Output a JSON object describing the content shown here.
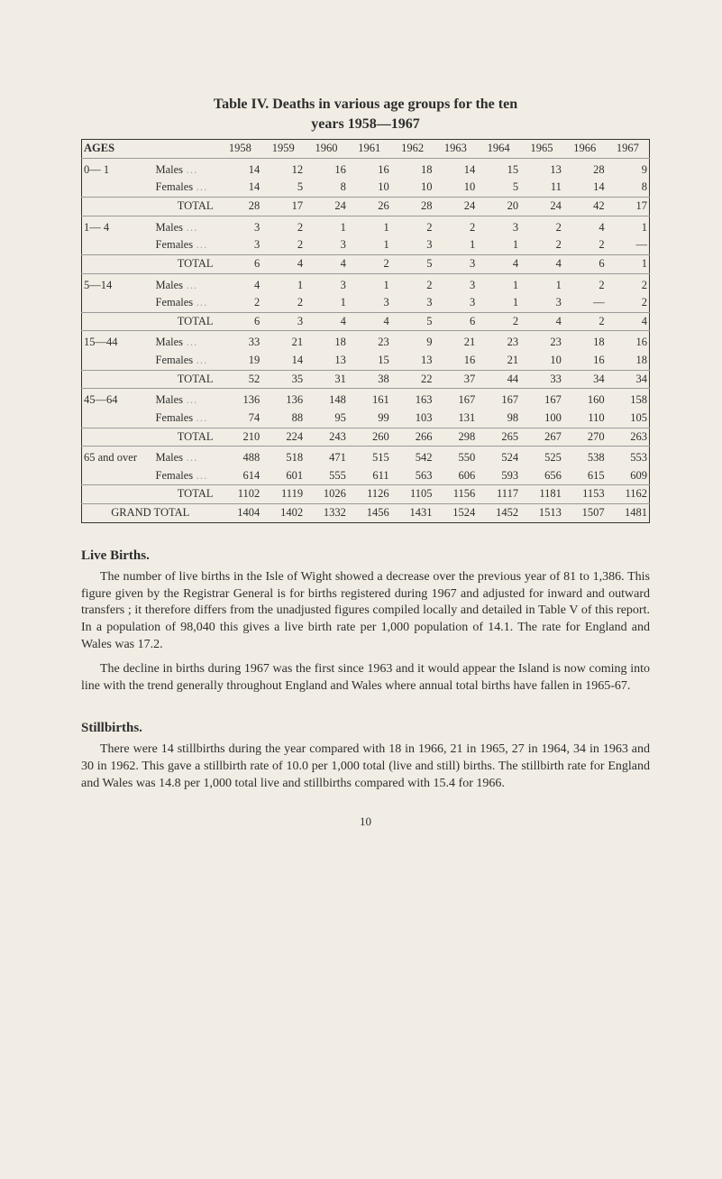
{
  "caption": {
    "prefix": "Table IV.",
    "title": "Deaths in various age groups for the ten",
    "subtitle": "years 1958—1967"
  },
  "years": [
    "1958",
    "1959",
    "1960",
    "1961",
    "1962",
    "1963",
    "1964",
    "1965",
    "1966",
    "1967"
  ],
  "header_label": "AGES",
  "labels": {
    "males": "Males",
    "females": "Females",
    "total": "TOTAL",
    "grand": "GRAND TOTAL"
  },
  "groups": [
    {
      "age": "0— 1",
      "males": [
        "14",
        "12",
        "16",
        "16",
        "18",
        "14",
        "15",
        "13",
        "28",
        "9"
      ],
      "females": [
        "14",
        "5",
        "8",
        "10",
        "10",
        "10",
        "5",
        "11",
        "14",
        "8"
      ],
      "total": [
        "28",
        "17",
        "24",
        "26",
        "28",
        "24",
        "20",
        "24",
        "42",
        "17"
      ]
    },
    {
      "age": "1— 4",
      "males": [
        "3",
        "2",
        "1",
        "1",
        "2",
        "2",
        "3",
        "2",
        "4",
        "1"
      ],
      "females": [
        "3",
        "2",
        "3",
        "1",
        "3",
        "1",
        "1",
        "2",
        "2",
        "—"
      ],
      "total": [
        "6",
        "4",
        "4",
        "2",
        "5",
        "3",
        "4",
        "4",
        "6",
        "1"
      ]
    },
    {
      "age": "5—14",
      "males": [
        "4",
        "1",
        "3",
        "1",
        "2",
        "3",
        "1",
        "1",
        "2",
        "2"
      ],
      "females": [
        "2",
        "2",
        "1",
        "3",
        "3",
        "3",
        "1",
        "3",
        "—",
        "2"
      ],
      "total": [
        "6",
        "3",
        "4",
        "4",
        "5",
        "6",
        "2",
        "4",
        "2",
        "4"
      ]
    },
    {
      "age": "15—44",
      "males": [
        "33",
        "21",
        "18",
        "23",
        "9",
        "21",
        "23",
        "23",
        "18",
        "16"
      ],
      "females": [
        "19",
        "14",
        "13",
        "15",
        "13",
        "16",
        "21",
        "10",
        "16",
        "18"
      ],
      "total": [
        "52",
        "35",
        "31",
        "38",
        "22",
        "37",
        "44",
        "33",
        "34",
        "34"
      ]
    },
    {
      "age": "45—64",
      "males": [
        "136",
        "136",
        "148",
        "161",
        "163",
        "167",
        "167",
        "167",
        "160",
        "158"
      ],
      "females": [
        "74",
        "88",
        "95",
        "99",
        "103",
        "131",
        "98",
        "100",
        "110",
        "105"
      ],
      "total": [
        "210",
        "224",
        "243",
        "260",
        "266",
        "298",
        "265",
        "267",
        "270",
        "263"
      ]
    },
    {
      "age": "65 and over",
      "males": [
        "488",
        "518",
        "471",
        "515",
        "542",
        "550",
        "524",
        "525",
        "538",
        "553"
      ],
      "females": [
        "614",
        "601",
        "555",
        "611",
        "563",
        "606",
        "593",
        "656",
        "615",
        "609"
      ],
      "total": [
        "1102",
        "1119",
        "1026",
        "1126",
        "1105",
        "1156",
        "1117",
        "1181",
        "1153",
        "1162"
      ]
    }
  ],
  "grand_total": [
    "1404",
    "1402",
    "1332",
    "1456",
    "1431",
    "1524",
    "1452",
    "1513",
    "1507",
    "1481"
  ],
  "sections": {
    "live_births": {
      "heading": "Live Births.",
      "p1": "The number of live births in the Isle of Wight showed a decrease over the previous year of 81 to 1,386. This figure given by the Registrar General is for births registered during 1967 and adjusted for inward and outward transfers ; it therefore differs from the unadjusted figures compiled locally and detailed in Table V of this report. In a population of 98,040 this gives a live birth rate per 1,000 population of 14.1. The rate for England and Wales was 17.2.",
      "p2": "The decline in births during 1967 was the first since 1963 and it would appear the Island is now coming into line with the trend generally throughout England and Wales where annual total births have fallen in 1965-67."
    },
    "stillbirths": {
      "heading": "Stillbirths.",
      "p1": "There were 14 stillbirths during the year compared with 18 in 1966, 21 in 1965, 27 in 1964, 34 in 1963 and 30 in 1962. This gave a stillbirth rate of 10.0 per 1,000 total (live and still) births. The stillbirth rate for England and Wales was 14.8 per 1,000 total live and stillbirths compared with 15.4 for 1966."
    }
  },
  "page_number": "10"
}
